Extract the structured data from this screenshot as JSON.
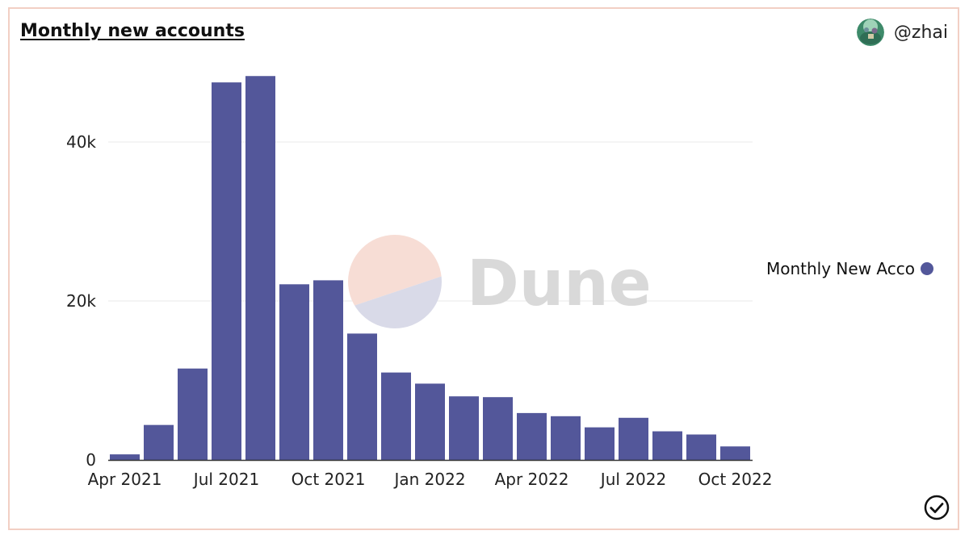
{
  "header": {
    "title": "Monthly new accounts",
    "username": "@zhai"
  },
  "watermark": {
    "text": "Dune"
  },
  "legend": {
    "label": "Monthly New Accounts"
  },
  "colors": {
    "bar": "#53579a",
    "card_border": "#f2cfc4",
    "grid": "#e8e8e8",
    "watermark_text": "#d9d9d9",
    "watermark_top": "#f7ddd5",
    "watermark_bottom": "#d9dae8"
  },
  "icons": {
    "status": "check-circle-icon",
    "avatar": "avatar-image"
  },
  "chart_data": {
    "type": "bar",
    "title": "Monthly new accounts",
    "xlabel": "",
    "ylabel": "",
    "ylim": [
      0,
      48500
    ],
    "yticks": [
      0,
      20000,
      40000
    ],
    "ytick_labels": [
      "0",
      "20k",
      "40k"
    ],
    "xticks": [
      {
        "index": 0,
        "label": "Apr 2021"
      },
      {
        "index": 3,
        "label": "Jul 2021"
      },
      {
        "index": 6,
        "label": "Oct 2021"
      },
      {
        "index": 9,
        "label": "Jan 2022"
      },
      {
        "index": 12,
        "label": "Apr 2022"
      },
      {
        "index": 15,
        "label": "Jul 2022"
      },
      {
        "index": 18,
        "label": "Oct 2022"
      }
    ],
    "categories": [
      "Apr 2021",
      "May 2021",
      "Jun 2021",
      "Jul 2021",
      "Aug 2021",
      "Sep 2021",
      "Oct 2021",
      "Nov 2021",
      "Dec 2021",
      "Jan 2022",
      "Feb 2022",
      "Mar 2022",
      "Apr 2022",
      "May 2022",
      "Jun 2022",
      "Jul 2022",
      "Aug 2022",
      "Sep 2022",
      "Oct 2022"
    ],
    "series": [
      {
        "name": "Monthly New Accounts",
        "values": [
          700,
          4400,
          11500,
          47500,
          48300,
          22100,
          22600,
          15900,
          11000,
          9600,
          8000,
          7900,
          5900,
          5500,
          4100,
          5300,
          3600,
          3200,
          1700
        ]
      }
    ],
    "grid": true,
    "legend_position": "right"
  }
}
